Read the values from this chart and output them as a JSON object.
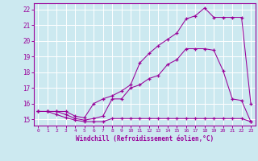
{
  "xlabel": "Windchill (Refroidissement éolien,°C)",
  "bg_color": "#cce9f0",
  "line_color": "#990099",
  "grid_color": "#ffffff",
  "xlim": [
    -0.5,
    23.5
  ],
  "ylim": [
    14.6,
    22.4
  ],
  "xticks": [
    0,
    1,
    2,
    3,
    4,
    5,
    6,
    7,
    8,
    9,
    10,
    11,
    12,
    13,
    14,
    15,
    16,
    17,
    18,
    19,
    20,
    21,
    22,
    23
  ],
  "yticks": [
    15,
    16,
    17,
    18,
    19,
    20,
    21,
    22
  ],
  "line1_x": [
    0,
    1,
    2,
    3,
    4,
    5,
    6,
    7,
    8,
    9,
    10,
    11,
    12,
    13,
    14,
    15,
    16,
    17,
    18,
    19,
    20,
    21,
    22,
    23
  ],
  "line1_y": [
    15.5,
    15.5,
    15.3,
    15.1,
    14.95,
    14.85,
    14.85,
    14.85,
    15.05,
    15.05,
    15.05,
    15.05,
    15.05,
    15.05,
    15.05,
    15.05,
    15.05,
    15.05,
    15.05,
    15.05,
    15.05,
    15.05,
    15.05,
    14.85
  ],
  "line2_x": [
    0,
    1,
    2,
    3,
    4,
    5,
    6,
    7,
    8,
    9,
    10,
    11,
    12,
    13,
    14,
    15,
    16,
    17,
    18,
    19,
    20,
    21,
    22,
    23
  ],
  "line2_y": [
    15.5,
    15.5,
    15.5,
    15.3,
    15.05,
    14.95,
    15.05,
    15.2,
    16.3,
    16.3,
    17.0,
    17.2,
    17.6,
    17.8,
    18.5,
    18.8,
    19.5,
    19.5,
    19.5,
    19.4,
    18.1,
    16.3,
    16.2,
    14.85
  ],
  "line3_x": [
    0,
    1,
    2,
    3,
    4,
    5,
    6,
    7,
    8,
    9,
    10,
    11,
    12,
    13,
    14,
    15,
    16,
    17,
    18,
    19,
    20,
    21,
    22,
    23
  ],
  "line3_y": [
    15.5,
    15.5,
    15.5,
    15.5,
    15.2,
    15.1,
    16.0,
    16.3,
    16.5,
    16.8,
    17.2,
    18.6,
    19.2,
    19.7,
    20.1,
    20.5,
    21.4,
    21.6,
    22.1,
    21.5,
    21.5,
    21.5,
    21.5,
    16.0
  ]
}
